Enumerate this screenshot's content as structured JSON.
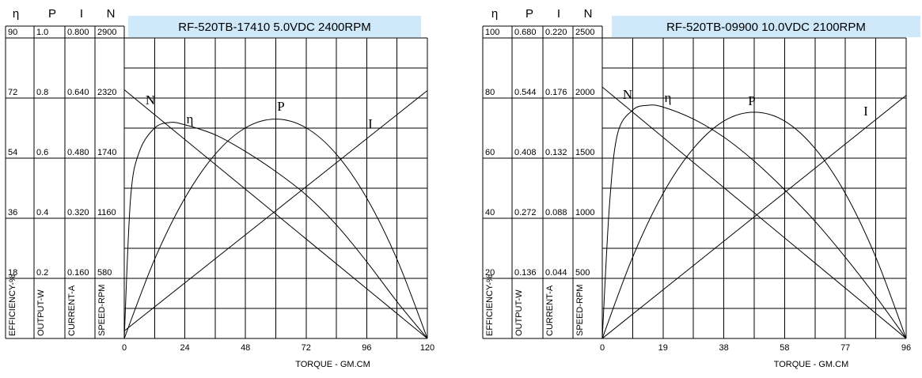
{
  "chart_data": [
    {
      "type": "line",
      "title": "RF-520TB-17410    5.0VDC   2400RPM",
      "xlabel": "TORQUE - GM.CM",
      "xlim": [
        0,
        120
      ],
      "xticks": [
        0,
        24,
        48,
        72,
        96,
        120
      ],
      "axes": [
        {
          "name": "η",
          "label": "EFFICIENCY-%",
          "ylim": [
            0,
            90
          ],
          "yticks": [
            18,
            36,
            54,
            72,
            90
          ]
        },
        {
          "name": "P",
          "label": "OUTPUT-W",
          "ylim": [
            0,
            1.0
          ],
          "yticks": [
            0.2,
            0.4,
            0.6,
            0.8,
            {
              "value": 1.0,
              "label": "1.0"
            }
          ]
        },
        {
          "name": "I",
          "label": "CURRENT-A",
          "ylim": [
            0,
            0.8
          ],
          "yticks": [
            {
              "value": 0.16,
              "label": "0.160"
            },
            {
              "value": 0.32,
              "label": "0.320"
            },
            {
              "value": 0.48,
              "label": "0.480"
            },
            {
              "value": 0.64,
              "label": "0.640"
            },
            {
              "value": 0.8,
              "label": "0.800"
            }
          ]
        },
        {
          "name": "N",
          "label": "SPEED-RPM",
          "ylim": [
            0,
            2900
          ],
          "yticks": [
            580,
            1160,
            1740,
            2320,
            2900
          ]
        }
      ],
      "series": [
        {
          "name": "N",
          "axis": 3,
          "color": "#000000",
          "x": [
            0,
            120
          ],
          "values": [
            2400,
            0
          ]
        },
        {
          "name": "η",
          "axis": 0,
          "color": "#000000",
          "x": [
            0,
            2.5,
            6,
            12,
            18,
            24,
            36,
            48,
            60,
            72,
            84,
            96,
            108,
            120
          ],
          "values": [
            0,
            42,
            56,
            63,
            64.7,
            64,
            61,
            56,
            50,
            43,
            34,
            23,
            11,
            0
          ]
        },
        {
          "name": "P",
          "axis": 1,
          "color": "#000000",
          "x": [
            0,
            12,
            24,
            36,
            48,
            60,
            72,
            84,
            96,
            108,
            120
          ],
          "values": [
            0,
            0.263,
            0.467,
            0.613,
            0.701,
            0.73,
            0.701,
            0.613,
            0.467,
            0.263,
            0
          ]
        },
        {
          "name": "I",
          "axis": 2,
          "color": "#000000",
          "x": [
            0,
            120
          ],
          "values": [
            0.02,
            0.66
          ]
        }
      ]
    },
    {
      "type": "line",
      "title": "RF-520TB-09900   10.0VDC  2100RPM",
      "xlabel": "TORQUE - GM.CM",
      "xlim": [
        0,
        96
      ],
      "xticks": [
        0,
        {
          "value": 19.2,
          "label": "19"
        },
        {
          "value": 38.4,
          "label": "38"
        },
        {
          "value": 57.6,
          "label": "58"
        },
        {
          "value": 76.8,
          "label": "77"
        },
        96
      ],
      "axes": [
        {
          "name": "η",
          "label": "EFFICIENCY-%",
          "ylim": [
            0,
            100
          ],
          "yticks": [
            20,
            40,
            60,
            80,
            100
          ]
        },
        {
          "name": "P",
          "label": "OUTPUT-W",
          "ylim": [
            0,
            0.68
          ],
          "yticks": [
            0.136,
            0.272,
            0.408,
            0.544,
            {
              "value": 0.68,
              "label": "0.680"
            }
          ]
        },
        {
          "name": "I",
          "label": "CURRENT-A",
          "ylim": [
            0,
            0.22
          ],
          "yticks": [
            0.044,
            0.088,
            0.132,
            0.176,
            {
              "value": 0.22,
              "label": "0.220"
            }
          ]
        },
        {
          "name": "N",
          "label": "SPEED-RPM",
          "ylim": [
            0,
            2500
          ],
          "yticks": [
            500,
            1000,
            1500,
            2000,
            2500
          ]
        }
      ],
      "series": [
        {
          "name": "N",
          "axis": 3,
          "color": "#000000",
          "x": [
            0,
            96
          ],
          "values": [
            2092,
            0
          ]
        },
        {
          "name": "η",
          "axis": 0,
          "color": "#000000",
          "x": [
            0,
            2.25,
            4.8,
            9.6,
            14.4,
            19.2,
            28.8,
            38.4,
            48,
            57.6,
            67.2,
            76.8,
            86.4,
            96
          ],
          "values": [
            0,
            44,
            68,
            76,
            77.6,
            77,
            73,
            67,
            59,
            49.5,
            39,
            27,
            14,
            0
          ]
        },
        {
          "name": "P",
          "axis": 1,
          "color": "#000000",
          "x": [
            0,
            9.6,
            19.2,
            28.8,
            38.4,
            48,
            57.6,
            67.2,
            76.8,
            86.4,
            96
          ],
          "values": [
            0,
            0.184,
            0.328,
            0.43,
            0.492,
            0.512,
            0.492,
            0.43,
            0.328,
            0.184,
            0
          ]
        },
        {
          "name": "I",
          "axis": 2,
          "color": "#000000",
          "x": [
            0,
            96
          ],
          "values": [
            0,
            0.178
          ]
        }
      ]
    }
  ]
}
